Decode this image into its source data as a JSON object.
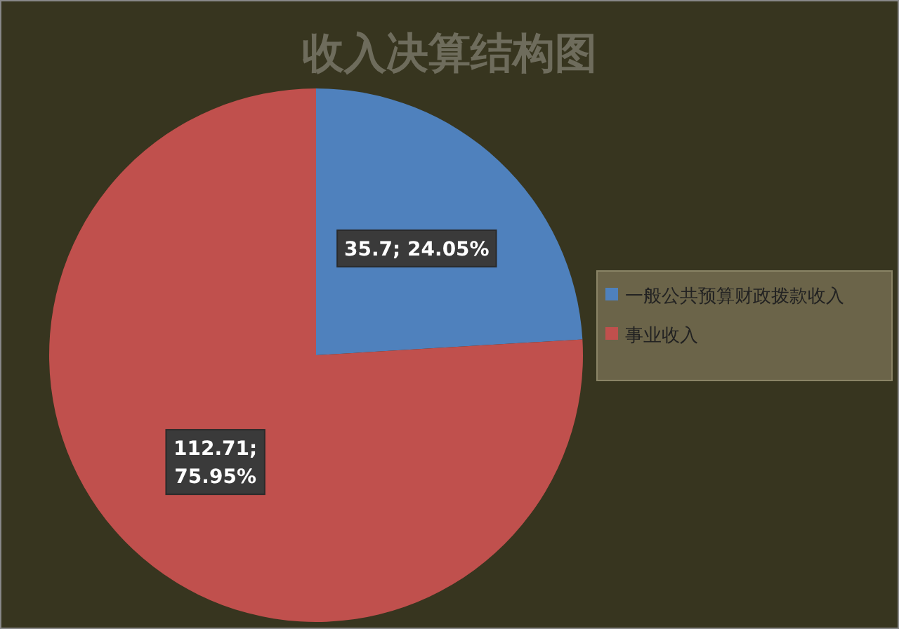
{
  "chart_data": {
    "type": "pie",
    "title": "收入决算结构图",
    "categories": [
      "一般公共预算财政拨款收入",
      "事业收入"
    ],
    "values": [
      35.7,
      112.71
    ],
    "colors": [
      "#4f81bd",
      "#c0504d"
    ],
    "value_labels": [
      "35.7; 24.05%",
      "112.71; 75.95%"
    ],
    "legend": "right"
  }
}
